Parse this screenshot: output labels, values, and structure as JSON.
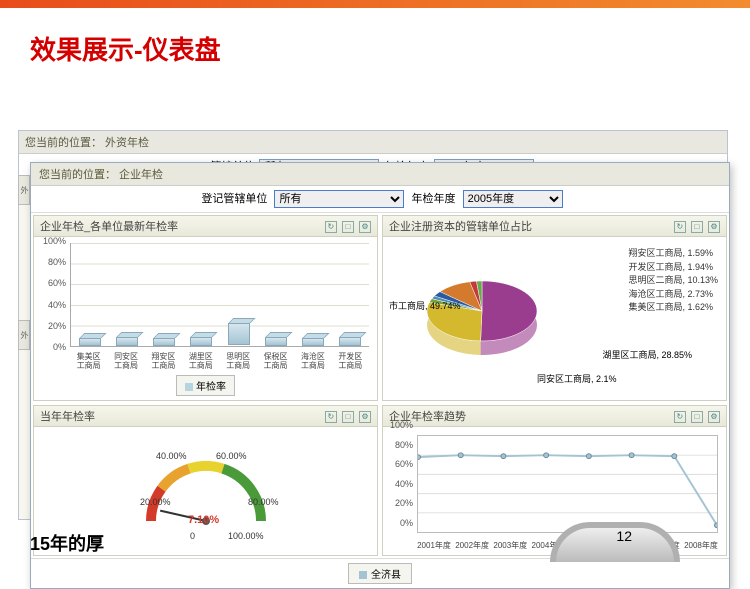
{
  "slide": {
    "title": "效果展示-仪表盘",
    "footer": "15年的厚",
    "page_number": "12"
  },
  "bg_window": {
    "breadcrumb": "您当前的位置： 外资年检",
    "filter1_label": "管辖单位",
    "filter1_value": "所有",
    "filter2_label": "年检年度",
    "filter2_value": "2007年度",
    "side_tab1": "外",
    "side_tab2": "外"
  },
  "fg_window": {
    "breadcrumb": "您当前的位置： 企业年检",
    "filter1_label": "登记管辖单位",
    "filter1_value": "所有",
    "filter2_label": "年检年度",
    "filter2_value": "2005年度"
  },
  "panels": {
    "bar": {
      "title": "企业年检_各单位最新年检率",
      "y_ticks": [
        "0%",
        "20%",
        "40%",
        "60%",
        "80%",
        "100%"
      ],
      "y_max": 100,
      "categories": [
        "集美区工商局",
        "同安区工商局",
        "翔安区工商局",
        "湖里区工商局",
        "思明区工商局",
        "保税区工商局",
        "海沧区工商局",
        "开发区工商局"
      ],
      "values": [
        8,
        9,
        8,
        9,
        22,
        9,
        8,
        9
      ],
      "bar_color": "#b7d3e0",
      "legend": "年检率"
    },
    "pie": {
      "title": "企业注册资本的管辖单位占比",
      "slices": [
        {
          "label": "市工商局",
          "pct": 49.74,
          "color": "#9b3d8e"
        },
        {
          "label": "湖里区工商局",
          "pct": 28.85,
          "color": "#d4b92e"
        },
        {
          "label": "同安区工商局",
          "pct": 2.1,
          "color": "#7aa23a"
        },
        {
          "label": "集美区工商局",
          "pct": 1.62,
          "color": "#4a8fb5"
        },
        {
          "label": "海沧区工商局",
          "pct": 2.73,
          "color": "#2c5aa0"
        },
        {
          "label": "思明区二商局",
          "pct": 10.13,
          "color": "#d47a2e"
        },
        {
          "label": "开发区工商局",
          "pct": 1.94,
          "color": "#c23a3a"
        },
        {
          "label": "翔安区工商局",
          "pct": 1.59,
          "color": "#6aa84f"
        }
      ]
    },
    "gauge": {
      "title": "当年年检率",
      "value": 7.1,
      "value_label": "7.10%",
      "ticks": [
        "0",
        "20.00%",
        "40.00%",
        "60.00%",
        "80.00%",
        "100.00%"
      ],
      "zones": [
        {
          "from": 0,
          "to": 20,
          "color": "#d43a2a"
        },
        {
          "from": 20,
          "to": 40,
          "color": "#e8a22e"
        },
        {
          "from": 40,
          "to": 60,
          "color": "#e8d22e"
        },
        {
          "from": 60,
          "to": 100,
          "color": "#4a9a3a"
        }
      ]
    },
    "line": {
      "title": "企业年检率趋势",
      "y_ticks": [
        "0%",
        "20%",
        "40%",
        "60%",
        "80%",
        "100%"
      ],
      "y_max": 100,
      "categories": [
        "2001年度",
        "2002年度",
        "2003年度",
        "2004年度",
        "2005年度",
        "2006年度",
        "2007年度",
        "2008年度"
      ],
      "values": [
        78,
        80,
        79,
        80,
        79,
        80,
        79,
        7
      ],
      "line_color": "#a5c4d3"
    },
    "footer_legend": "全济县"
  }
}
